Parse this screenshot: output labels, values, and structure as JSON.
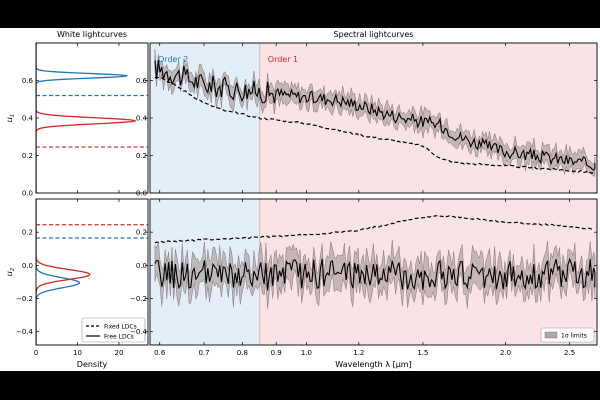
{
  "figure": {
    "background": "#000000",
    "panel_background": "#ffffff"
  },
  "chart_data": [
    {
      "id": "white_u1",
      "type": "line",
      "title": "White lightcurves",
      "xlabel": "",
      "ylabel": "u1",
      "xlim": [
        0,
        27
      ],
      "ylim": [
        0.0,
        0.8
      ],
      "xticks": [
        0,
        10,
        20
      ],
      "yticks": [
        0.0,
        0.2,
        0.4,
        0.6
      ],
      "series": [
        {
          "name": "Order 2 posterior",
          "color": "#1f77b4",
          "peak_y": 0.625,
          "sigma": 0.012,
          "peak_density": 22
        },
        {
          "name": "Order 1 posterior",
          "color": "#d62728",
          "peak_y": 0.385,
          "sigma": 0.016,
          "peak_density": 24
        }
      ],
      "hlines": [
        {
          "name": "Fixed LDC order 2",
          "y": 0.52,
          "color": "#1f77b4",
          "style": "dashed"
        },
        {
          "name": "Fixed LDC order 1",
          "y": 0.245,
          "color": "#d62728",
          "style": "dashed"
        }
      ]
    },
    {
      "id": "white_u2",
      "type": "line",
      "xlabel": "Density",
      "ylabel": "u2",
      "xlim": [
        0,
        27
      ],
      "ylim": [
        -0.48,
        0.4
      ],
      "xticks": [
        0,
        10,
        20
      ],
      "xticklabels": [
        "0",
        "10",
        "20"
      ],
      "yticks": [
        -0.4,
        -0.2,
        0.0,
        0.2
      ],
      "series": [
        {
          "name": "Order 2 posterior",
          "color": "#1f77b4",
          "peak_y": -0.105,
          "sigma": 0.03,
          "peak_density": 10.5
        },
        {
          "name": "Order 1 posterior",
          "color": "#d62728",
          "peak_y": -0.055,
          "sigma": 0.03,
          "peak_density": 13
        }
      ],
      "hlines": [
        {
          "name": "Fixed LDC order 2",
          "y": 0.165,
          "color": "#1f77b4",
          "style": "dashed"
        },
        {
          "name": "Fixed LDC order 1",
          "y": 0.245,
          "color": "#d62728",
          "style": "dashed"
        }
      ],
      "legend": {
        "position": "bottom-right",
        "entries": [
          {
            "label": "Fixed LDCs",
            "style": "dashed"
          },
          {
            "label": "Free LDCs",
            "style": "solid"
          }
        ]
      }
    },
    {
      "id": "spectral_u1",
      "type": "line",
      "title": "Spectral lightcurves",
      "xlabel": "",
      "ylabel": "",
      "xscale": "log",
      "xlim": [
        0.58,
        2.75
      ],
      "ylim": [
        0.0,
        0.8
      ],
      "xticks": [
        0.6,
        0.7,
        0.8,
        0.9,
        1.0,
        1.2,
        1.5,
        2.0,
        2.5
      ],
      "yticks": [
        0.0,
        0.2,
        0.4,
        0.6
      ],
      "regions": [
        {
          "label": "Order 2",
          "x0": 0.58,
          "x1": 0.85,
          "color": "#1f77b4",
          "fill": "#e4eef8"
        },
        {
          "label": "Order 1",
          "x0": 0.85,
          "x1": 2.75,
          "color": "#d62728",
          "fill": "#f9e3e4"
        }
      ],
      "series": [
        {
          "name": "Free LDCs",
          "style": "solid",
          "x": [
            0.6,
            0.65,
            0.7,
            0.75,
            0.8,
            0.85,
            0.9,
            1.0,
            1.1,
            1.2,
            1.3,
            1.4,
            1.5,
            1.6,
            1.7,
            1.8,
            1.9,
            2.0,
            2.1,
            2.2,
            2.3,
            2.4,
            2.5,
            2.6,
            2.7
          ],
          "y": [
            0.66,
            0.62,
            0.58,
            0.56,
            0.55,
            0.54,
            0.53,
            0.51,
            0.5,
            0.47,
            0.43,
            0.4,
            0.38,
            0.36,
            0.3,
            0.27,
            0.24,
            0.22,
            0.21,
            0.2,
            0.19,
            0.18,
            0.17,
            0.16,
            0.15
          ],
          "sigma": 0.045
        },
        {
          "name": "Fixed LDCs",
          "style": "dashed",
          "x": [
            0.6,
            0.65,
            0.7,
            0.75,
            0.8,
            0.85,
            0.9,
            1.0,
            1.1,
            1.2,
            1.3,
            1.4,
            1.5,
            1.6,
            1.7,
            1.8,
            1.9,
            2.0,
            2.1,
            2.2,
            2.3,
            2.4,
            2.5,
            2.6,
            2.7
          ],
          "y": [
            0.62,
            0.55,
            0.48,
            0.44,
            0.42,
            0.4,
            0.39,
            0.37,
            0.34,
            0.31,
            0.29,
            0.27,
            0.25,
            0.18,
            0.16,
            0.155,
            0.15,
            0.145,
            0.14,
            0.135,
            0.13,
            0.125,
            0.12,
            0.115,
            0.11
          ]
        }
      ]
    },
    {
      "id": "spectral_u2",
      "type": "line",
      "xlabel": "Wavelength λ [μm]",
      "ylabel": "",
      "xscale": "log",
      "xlim": [
        0.58,
        2.75
      ],
      "ylim": [
        -0.48,
        0.4
      ],
      "xticks": [
        0.6,
        0.7,
        0.8,
        0.9,
        1.0,
        1.2,
        1.5,
        2.0,
        2.5
      ],
      "xticklabels": [
        "0.6",
        "0.7",
        "0.8",
        "0.9",
        "1.0",
        "1.2",
        "1.5",
        "2.0",
        "2.5"
      ],
      "yticks": [
        -0.4,
        -0.2,
        0.0,
        0.2
      ],
      "regions": [
        {
          "label": "",
          "x0": 0.58,
          "x1": 0.85,
          "fill": "#e4eef8"
        },
        {
          "label": "",
          "x0": 0.85,
          "x1": 2.75,
          "fill": "#f9e3e4"
        }
      ],
      "series": [
        {
          "name": "Free LDCs",
          "style": "solid",
          "x": [
            0.6,
            0.7,
            0.8,
            0.9,
            1.0,
            1.2,
            1.4,
            1.6,
            1.8,
            2.0,
            2.2,
            2.4,
            2.7
          ],
          "y": [
            -0.05,
            -0.06,
            -0.07,
            -0.06,
            -0.05,
            -0.05,
            -0.06,
            -0.06,
            -0.06,
            -0.06,
            -0.06,
            -0.05,
            -0.05
          ],
          "sigma": 0.09
        },
        {
          "name": "Fixed LDCs",
          "style": "dashed",
          "x": [
            0.6,
            0.7,
            0.8,
            0.9,
            1.0,
            1.2,
            1.4,
            1.5,
            1.6,
            1.8,
            2.0,
            2.2,
            2.4,
            2.7
          ],
          "y": [
            0.14,
            0.155,
            0.165,
            0.175,
            0.185,
            0.21,
            0.27,
            0.29,
            0.3,
            0.28,
            0.26,
            0.25,
            0.24,
            0.22
          ]
        }
      ],
      "legend": {
        "position": "bottom-right",
        "entries": [
          {
            "label": "1σ limits",
            "style": "patch"
          }
        ]
      }
    }
  ]
}
